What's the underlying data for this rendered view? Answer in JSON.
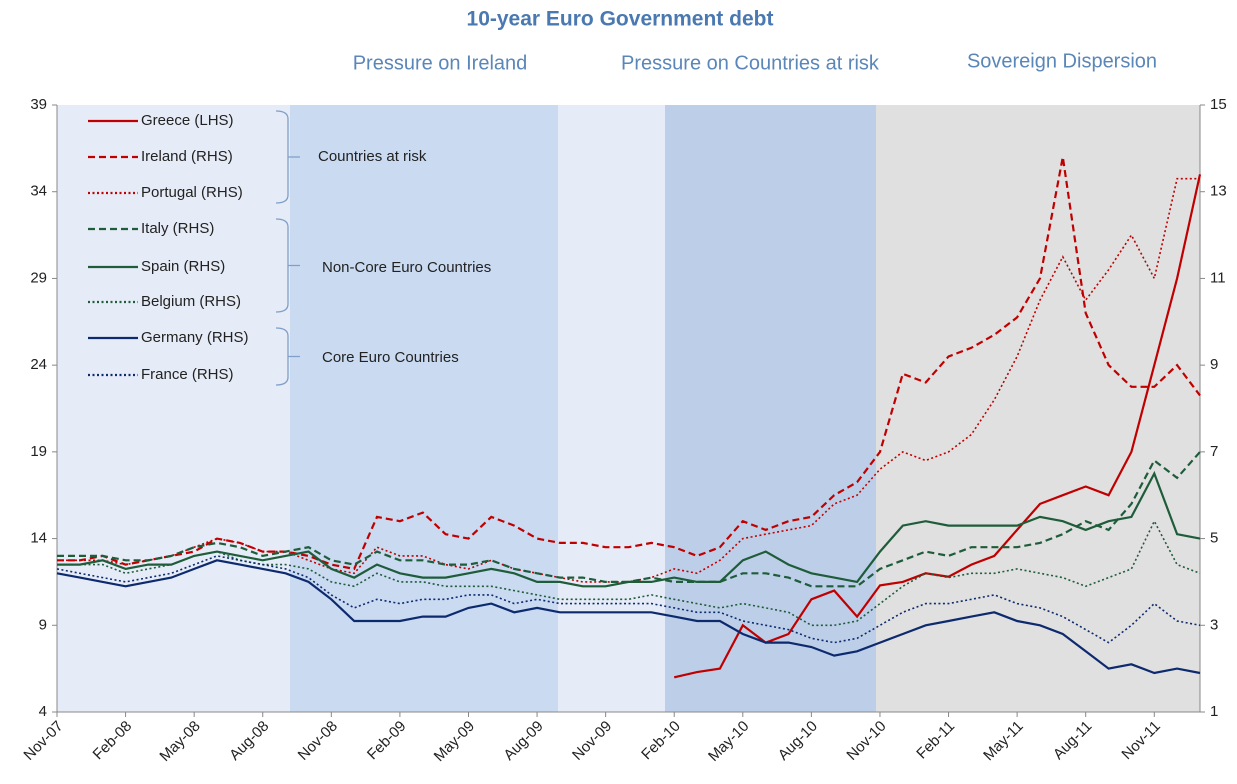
{
  "chart_data": {
    "type": "line",
    "title": "10-year Euro Government debt",
    "annotations": [
      "Pressure on Ireland",
      "Pressure on Countries at risk",
      "Sovereign  Dispersion"
    ],
    "legend_groups": [
      "Countries at risk",
      "Non-Core Euro Countries",
      "Core Euro Countries"
    ],
    "categories": [
      "Nov-07",
      null,
      null,
      "Feb-08",
      null,
      null,
      "May-08",
      null,
      null,
      "Aug-08",
      null,
      null,
      "Nov-08",
      null,
      null,
      "Feb-09",
      null,
      null,
      "May-09",
      null,
      null,
      "Aug-09",
      null,
      null,
      "Nov-09",
      null,
      null,
      "Feb-10",
      null,
      null,
      "May-10",
      null,
      null,
      "Aug-10",
      null,
      null,
      "Nov-10",
      null,
      null,
      "Feb-11",
      null,
      null,
      "May-11",
      null,
      null,
      "Aug-11",
      null,
      null,
      "Nov-11",
      null,
      null
    ],
    "ylim": [
      4,
      39
    ],
    "yticks": [
      4,
      9,
      14,
      19,
      24,
      29,
      34,
      39
    ],
    "y2lim": [
      1,
      15
    ],
    "y2ticks": [
      1,
      3,
      5,
      7,
      9,
      11,
      13,
      15
    ],
    "series": [
      {
        "name": "Greece (LHS)",
        "color": "#c00000",
        "dash": "solid",
        "axis": "y",
        "values": [
          null,
          null,
          null,
          null,
          null,
          null,
          null,
          null,
          null,
          null,
          null,
          null,
          null,
          null,
          null,
          null,
          null,
          null,
          null,
          null,
          null,
          null,
          null,
          null,
          null,
          null,
          null,
          6.0,
          6.3,
          6.5,
          9,
          8,
          8.5,
          10.5,
          11,
          9.5,
          11.3,
          11.5,
          12,
          11.8,
          12.5,
          13,
          14.5,
          16,
          16.5,
          17,
          16.5,
          19,
          24,
          29,
          35
        ]
      },
      {
        "name": "Ireland (RHS)",
        "color": "#c00000",
        "dash": "dashed",
        "axis": "y2",
        "values": [
          4.5,
          4.5,
          4.6,
          4.4,
          4.5,
          4.6,
          4.7,
          5.0,
          4.9,
          4.7,
          4.7,
          4.6,
          4.4,
          4.3,
          5.5,
          5.4,
          5.6,
          5.1,
          5.0,
          5.5,
          5.3,
          5.0,
          4.9,
          4.9,
          4.8,
          4.8,
          4.9,
          4.8,
          4.6,
          4.8,
          5.4,
          5.2,
          5.4,
          5.5,
          6.0,
          6.3,
          7.0,
          8.8,
          8.6,
          9.2,
          9.4,
          9.7,
          10.1,
          11.0,
          13.8,
          10.2,
          9.0,
          8.5,
          8.5,
          9.0,
          8.3
        ]
      },
      {
        "name": "Portugal (RHS)",
        "color": "#c00000",
        "dash": "dotted",
        "axis": "y2",
        "values": [
          4.5,
          4.5,
          4.5,
          4.4,
          4.5,
          4.6,
          4.8,
          5.0,
          4.9,
          4.7,
          4.7,
          4.5,
          4.3,
          4.2,
          4.8,
          4.6,
          4.6,
          4.4,
          4.3,
          4.5,
          4.3,
          4.2,
          4.1,
          4.0,
          4.0,
          4.0,
          4.1,
          4.3,
          4.2,
          4.5,
          5.0,
          5.1,
          5.2,
          5.3,
          5.8,
          6.0,
          6.6,
          7.0,
          6.8,
          7.0,
          7.4,
          8.2,
          9.2,
          10.5,
          11.5,
          10.5,
          11.2,
          12.0,
          11.0,
          13.3,
          13.3
        ]
      },
      {
        "name": "Italy (RHS)",
        "color": "#1e5c3a",
        "dash": "dashed",
        "axis": "y2",
        "values": [
          4.6,
          4.6,
          4.6,
          4.5,
          4.5,
          4.6,
          4.8,
          4.9,
          4.8,
          4.6,
          4.7,
          4.8,
          4.5,
          4.4,
          4.7,
          4.5,
          4.5,
          4.4,
          4.4,
          4.5,
          4.3,
          4.2,
          4.1,
          4.1,
          4.0,
          4.0,
          4.1,
          4.0,
          4.0,
          4.0,
          4.2,
          4.2,
          4.1,
          3.9,
          3.9,
          3.9,
          4.3,
          4.5,
          4.7,
          4.6,
          4.8,
          4.8,
          4.8,
          4.9,
          5.1,
          5.4,
          5.2,
          5.8,
          6.8,
          6.4,
          7.0
        ]
      },
      {
        "name": "Spain (RHS)",
        "color": "#1e5c3a",
        "dash": "solid",
        "axis": "y2",
        "values": [
          4.4,
          4.4,
          4.5,
          4.3,
          4.4,
          4.4,
          4.6,
          4.7,
          4.6,
          4.5,
          4.6,
          4.7,
          4.3,
          4.1,
          4.4,
          4.2,
          4.1,
          4.1,
          4.2,
          4.3,
          4.2,
          4.0,
          4.0,
          3.9,
          3.9,
          4.0,
          4.0,
          4.1,
          4.0,
          4.0,
          4.5,
          4.7,
          4.4,
          4.2,
          4.1,
          4.0,
          4.7,
          5.3,
          5.4,
          5.3,
          5.3,
          5.3,
          5.3,
          5.5,
          5.4,
          5.2,
          5.4,
          5.5,
          6.5,
          5.1,
          5.0
        ]
      },
      {
        "name": "Belgium (RHS)",
        "color": "#1e5c3a",
        "dash": "dotted",
        "axis": "y2",
        "values": [
          4.4,
          4.4,
          4.4,
          4.2,
          4.3,
          4.4,
          4.6,
          4.7,
          4.5,
          4.4,
          4.4,
          4.3,
          4.0,
          3.9,
          4.2,
          4.0,
          4.0,
          3.9,
          3.9,
          3.9,
          3.8,
          3.7,
          3.6,
          3.6,
          3.6,
          3.6,
          3.7,
          3.6,
          3.5,
          3.4,
          3.5,
          3.4,
          3.3,
          3.0,
          3.0,
          3.1,
          3.5,
          3.9,
          4.2,
          4.1,
          4.2,
          4.2,
          4.3,
          4.2,
          4.1,
          3.9,
          4.1,
          4.3,
          5.4,
          4.4,
          4.2
        ]
      },
      {
        "name": "Germany (RHS)",
        "color": "#0d2a6e",
        "dash": "solid",
        "axis": "y2",
        "values": [
          4.2,
          4.1,
          4.0,
          3.9,
          4.0,
          4.1,
          4.3,
          4.5,
          4.4,
          4.3,
          4.2,
          4.0,
          3.6,
          3.1,
          3.1,
          3.1,
          3.2,
          3.2,
          3.4,
          3.5,
          3.3,
          3.4,
          3.3,
          3.3,
          3.3,
          3.3,
          3.3,
          3.2,
          3.1,
          3.1,
          2.8,
          2.6,
          2.6,
          2.5,
          2.3,
          2.4,
          2.6,
          2.8,
          3.0,
          3.1,
          3.2,
          3.3,
          3.1,
          3.0,
          2.8,
          2.4,
          2.0,
          2.1,
          1.9,
          2.0,
          1.9
        ]
      },
      {
        "name": "France (RHS)",
        "color": "#0d2a6e",
        "dash": "dotted",
        "axis": "y2",
        "values": [
          4.3,
          4.2,
          4.1,
          4.0,
          4.1,
          4.2,
          4.4,
          4.6,
          4.5,
          4.4,
          4.3,
          4.1,
          3.7,
          3.4,
          3.6,
          3.5,
          3.6,
          3.6,
          3.7,
          3.7,
          3.5,
          3.6,
          3.5,
          3.5,
          3.5,
          3.5,
          3.5,
          3.4,
          3.3,
          3.3,
          3.1,
          3.0,
          2.9,
          2.7,
          2.6,
          2.7,
          3.0,
          3.3,
          3.5,
          3.5,
          3.6,
          3.7,
          3.5,
          3.4,
          3.2,
          2.9,
          2.6,
          3.0,
          3.5,
          3.1,
          3.0
        ]
      }
    ]
  }
}
